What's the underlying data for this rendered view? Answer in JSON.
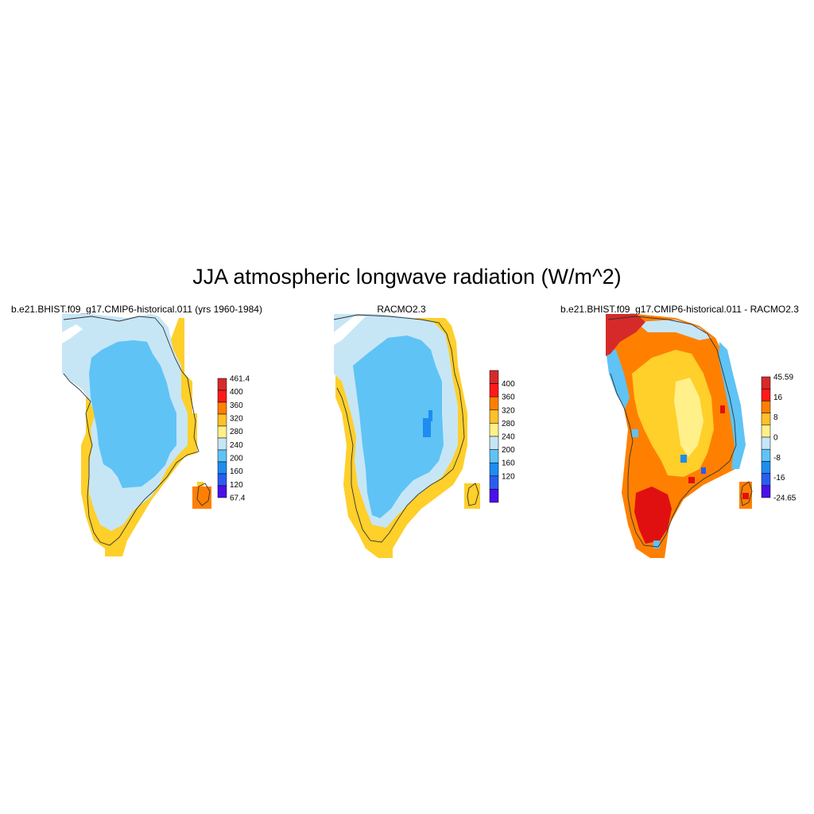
{
  "title": "JJA atmospheric longwave radiation (W/m^2)",
  "panels": [
    {
      "title": "b.e21.BHIST.f09_g17.CMIP6-historical.011 (yrs 1960-1984)",
      "colorbar_labels": [
        "461.4",
        "400",
        "360",
        "320",
        "280",
        "240",
        "200",
        "160",
        "120",
        "67.4"
      ],
      "colorbar_colors": [
        "#d62a2a",
        "#ff1a1a",
        "#ff8000",
        "#ffc02a",
        "#fff08a",
        "#c6e6f6",
        "#5fc3f5",
        "#1e8cf0",
        "#2a5cf0",
        "#4a10e8"
      ]
    },
    {
      "title": "RACMO2.3",
      "colorbar_labels": [
        "400",
        "360",
        "320",
        "280",
        "240",
        "200",
        "160",
        "120"
      ],
      "colorbar_colors": [
        "#d62a2a",
        "#ff1a1a",
        "#ff8000",
        "#ffc02a",
        "#fff08a",
        "#c6e6f6",
        "#5fc3f5",
        "#1e8cf0",
        "#2a5cf0",
        "#4a10e8"
      ]
    },
    {
      "title": "b.e21.BHIST.f09_g17.CMIP6-historical.011 - RACMO2.3",
      "colorbar_labels": [
        "45.59",
        "16",
        "8",
        "0",
        "-8",
        "-16",
        "-24.65"
      ],
      "colorbar_colors": [
        "#d62a2a",
        "#ff1a1a",
        "#ff8000",
        "#ffc02a",
        "#fff08a",
        "#c6e6f6",
        "#5fc3f5",
        "#1e8cf0",
        "#2a5cf0",
        "#4a10e8"
      ]
    }
  ],
  "colors": {
    "coast_yellow": "#ffcf2a",
    "light_blue": "#c6e6f6",
    "mid_blue": "#5fc3f5",
    "orange": "#ff8000",
    "red": "#e01010",
    "pale_yellow": "#fff08a"
  }
}
